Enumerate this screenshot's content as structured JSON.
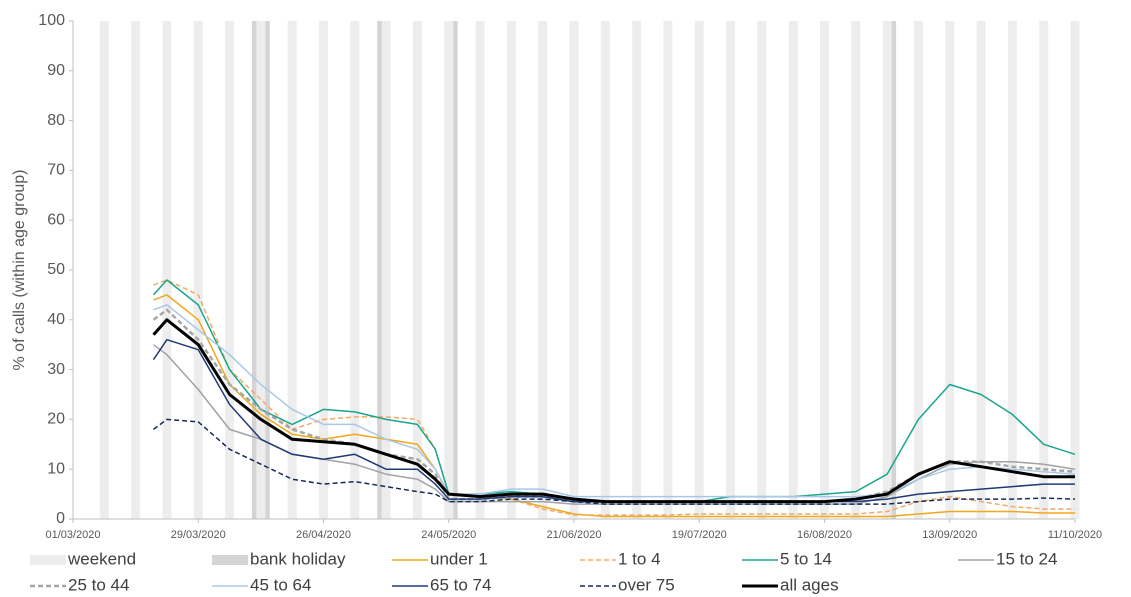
{
  "chart_data": {
    "type": "line",
    "y_label": "% of calls (within age group)",
    "xlim": [
      "01/03/2020",
      "11/10/2020"
    ],
    "xticks": [
      "01/03/2020",
      "29/03/2020",
      "26/04/2020",
      "24/05/2020",
      "21/06/2020",
      "19/07/2020",
      "16/08/2020",
      "13/09/2020",
      "11/10/2020"
    ],
    "ylim": [
      0,
      100
    ],
    "yticks": [
      0,
      10,
      20,
      30,
      40,
      50,
      60,
      70,
      80,
      90,
      100
    ],
    "shading": [
      {
        "name": "weekend",
        "color": "#ededed",
        "days": 2,
        "dates": [
          "07/03/2020",
          "14/03/2020",
          "21/03/2020",
          "28/03/2020",
          "04/04/2020",
          "11/04/2020",
          "18/04/2020",
          "25/04/2020",
          "02/05/2020",
          "09/05/2020",
          "16/05/2020",
          "23/05/2020",
          "30/05/2020",
          "06/06/2020",
          "13/06/2020",
          "20/06/2020",
          "27/06/2020",
          "04/07/2020",
          "11/07/2020",
          "18/07/2020",
          "25/07/2020",
          "01/08/2020",
          "08/08/2020",
          "15/08/2020",
          "22/08/2020",
          "29/08/2020",
          "05/09/2020",
          "12/09/2020",
          "19/09/2020",
          "26/09/2020",
          "03/10/2020",
          "10/10/2020"
        ]
      },
      {
        "name": "bank holiday",
        "color": "#d4d4d4",
        "days": 1,
        "dates": [
          "10/04/2020",
          "13/04/2020",
          "08/05/2020",
          "25/05/2020",
          "31/08/2020"
        ]
      }
    ],
    "x": [
      "19/03/2020",
      "22/03/2020",
      "29/03/2020",
      "05/04/2020",
      "12/04/2020",
      "19/04/2020",
      "26/04/2020",
      "03/05/2020",
      "10/05/2020",
      "17/05/2020",
      "21/05/2020",
      "24/05/2020",
      "31/05/2020",
      "07/06/2020",
      "14/06/2020",
      "21/06/2020",
      "28/06/2020",
      "05/07/2020",
      "12/07/2020",
      "19/07/2020",
      "26/07/2020",
      "02/08/2020",
      "09/08/2020",
      "16/08/2020",
      "23/08/2020",
      "30/08/2020",
      "06/09/2020",
      "13/09/2020",
      "20/09/2020",
      "27/09/2020",
      "04/10/2020",
      "11/10/2020"
    ],
    "series": [
      {
        "name": "under 1",
        "color": "#f0a81c",
        "dash": false,
        "width": 1.5,
        "values": [
          44,
          45,
          40,
          27,
          21,
          17,
          16,
          17,
          16,
          15,
          10,
          5,
          4.5,
          4,
          2.5,
          1,
          0.5,
          0.5,
          0.5,
          0.5,
          0.5,
          0.5,
          0.5,
          0.5,
          0.5,
          0.5,
          1,
          1.5,
          1.5,
          1.5,
          1.2,
          1.2
        ]
      },
      {
        "name": "1 to 4",
        "color": "#f4a866",
        "dash": true,
        "width": 1.5,
        "values": [
          47,
          48,
          45,
          30,
          24,
          18,
          20,
          20.5,
          20.5,
          20,
          14,
          5,
          4.5,
          4,
          2,
          0.8,
          0.8,
          0.8,
          0.8,
          1,
          1,
          1,
          1,
          1,
          1,
          1.5,
          3.5,
          4.5,
          3.5,
          2.5,
          2,
          2
        ]
      },
      {
        "name": "5 to 14",
        "color": "#1aa58e",
        "dash": false,
        "width": 1.5,
        "values": [
          45,
          48,
          43,
          30,
          22,
          19,
          22,
          21.5,
          20,
          19,
          14,
          5,
          5,
          5.5,
          5,
          4,
          3.5,
          3.5,
          3.5,
          3.5,
          4.5,
          4.5,
          4.5,
          5,
          5.5,
          9,
          20,
          27,
          25,
          21,
          15,
          13
        ]
      },
      {
        "name": "15 to 24",
        "color": "#9ea3a8",
        "dash": false,
        "width": 1.5,
        "values": [
          35,
          33,
          26,
          18,
          16,
          13,
          12,
          11,
          9,
          8,
          6,
          3.5,
          3.5,
          3.5,
          3.5,
          3,
          3,
          3,
          3,
          3,
          3,
          3,
          3,
          3,
          3,
          4.5,
          8,
          11,
          11.5,
          11.5,
          11,
          10
        ]
      },
      {
        "name": "25 to 44",
        "color": "#a6a6a6",
        "dash": true,
        "width": 2.5,
        "values": [
          40,
          42,
          36,
          27,
          22,
          18,
          16,
          15,
          13,
          12,
          9,
          4,
          4,
          4.5,
          4.5,
          3.5,
          3.5,
          3.5,
          3.5,
          3.5,
          3.5,
          3.5,
          3.5,
          3.5,
          4,
          5.5,
          9,
          11.5,
          11.5,
          10.5,
          10,
          9.5
        ]
      },
      {
        "name": "45 to 64",
        "color": "#a9c8e8",
        "dash": false,
        "width": 1.5,
        "values": [
          42,
          43,
          38,
          33,
          27,
          22,
          19,
          19,
          16,
          14,
          10,
          5,
          5,
          6,
          6,
          4.5,
          4.5,
          4.5,
          4.5,
          4.5,
          4.5,
          4.5,
          4.5,
          4.5,
          4.5,
          5,
          8,
          10,
          10.5,
          10,
          9.5,
          9
        ]
      },
      {
        "name": "65 to 74",
        "color": "#1f3a75",
        "dash": false,
        "width": 1.5,
        "values": [
          32,
          36,
          34,
          23,
          16,
          13,
          12,
          13,
          10,
          10,
          7,
          4,
          4,
          4.5,
          4.5,
          3.5,
          3.5,
          3.5,
          3.5,
          3.5,
          3.5,
          3.5,
          3.5,
          3.5,
          3.5,
          4,
          5,
          5.5,
          6,
          6.5,
          7,
          7
        ]
      },
      {
        "name": "over 75",
        "color": "#14295c",
        "dash": true,
        "width": 1.5,
        "values": [
          18,
          20,
          19.5,
          14,
          11,
          8,
          7,
          7.5,
          6.5,
          5.5,
          5,
          3.5,
          3.5,
          4,
          4,
          3.5,
          3,
          3,
          3,
          3,
          3,
          3,
          3,
          3,
          3,
          3,
          3.5,
          4,
          4,
          4,
          4.2,
          4
        ]
      },
      {
        "name": "all ages",
        "color": "#000000",
        "dash": false,
        "width": 3,
        "values": [
          37,
          40,
          35,
          25,
          20,
          16,
          15.5,
          15,
          13,
          11,
          8,
          5,
          4.5,
          5,
          5,
          4,
          3.5,
          3.5,
          3.5,
          3.5,
          3.5,
          3.5,
          3.5,
          3.5,
          4,
          5,
          9,
          11.5,
          10.5,
          9.5,
          8.5,
          8.5
        ]
      }
    ]
  }
}
